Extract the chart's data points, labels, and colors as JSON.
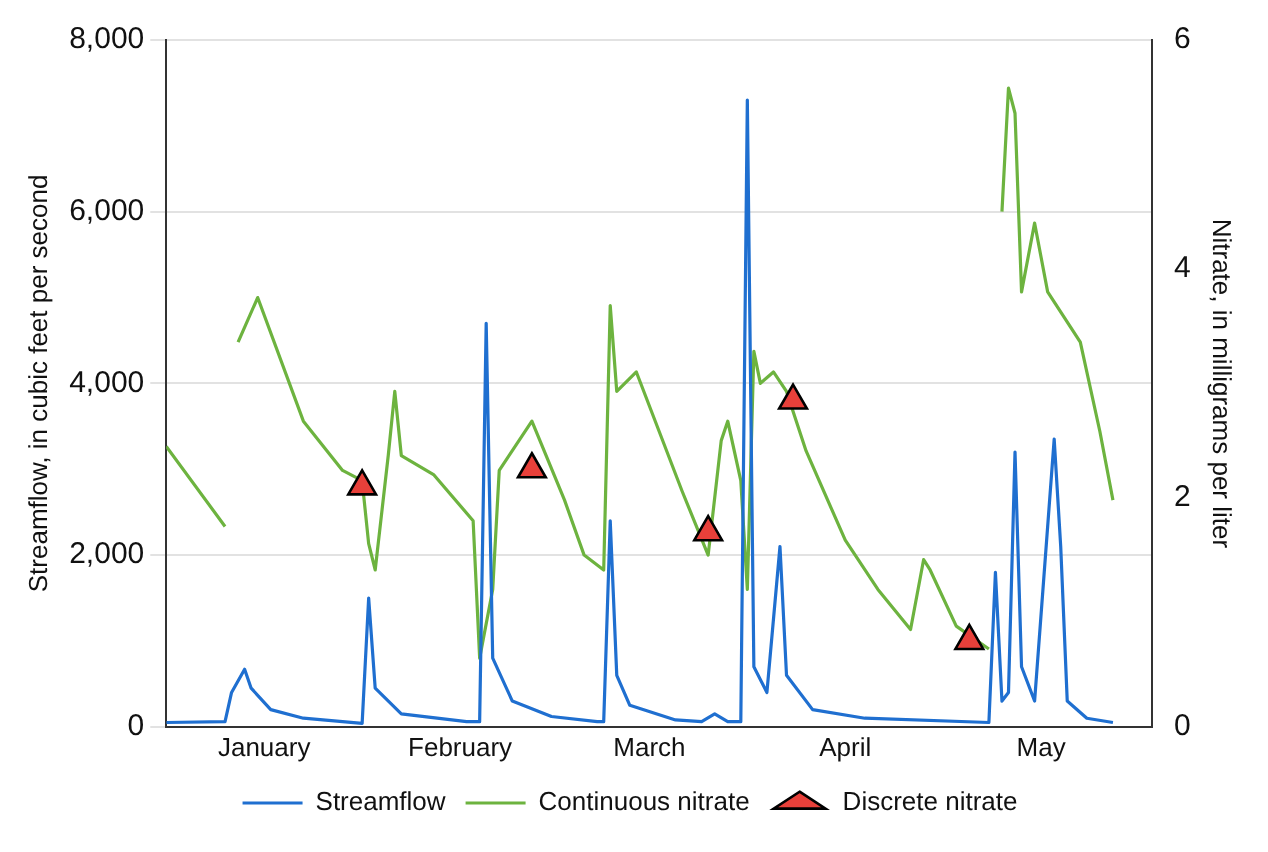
{
  "chart_data": {
    "type": "line",
    "xlabel": null,
    "ylabel": "Streamflow, in cubic feet per second",
    "y2label": "Nitrate, in milligrams per liter",
    "xlim": [
      "--01-01",
      "--06-01"
    ],
    "xticks": [
      {
        "value": "--01-16",
        "label": "January"
      },
      {
        "value": "--02-15",
        "label": "February"
      },
      {
        "value": "--03-16",
        "label": "March"
      },
      {
        "value": "--04-15",
        "label": "April"
      },
      {
        "value": "--05-15",
        "label": "May"
      }
    ],
    "ylim": [
      0,
      8000
    ],
    "yticks": [
      0,
      {
        "value": 2000,
        "label": "2,000"
      },
      {
        "value": 4000,
        "label": "4,000"
      },
      {
        "value": 6000,
        "label": "6,000"
      },
      {
        "value": 8000,
        "label": "8,000"
      }
    ],
    "y2lim": [
      0,
      6
    ],
    "y2ticks": [
      0,
      2,
      4,
      6
    ],
    "grid": "y",
    "legend": "bottom",
    "series": [
      {
        "name": "Streamflow",
        "type": "line",
        "color": "#1f6fd0",
        "marker": "none",
        "x": [
          "--01-01",
          "--01-10",
          "--01-11",
          "--01-13",
          "--01-14",
          "--01-17",
          "--01-22",
          "--01-31",
          "--02-01",
          "--02-02",
          "--02-06",
          "--02-16",
          "--02-18",
          "--02-19",
          "--02-20",
          "--02-23",
          "--03-01",
          "--03-08",
          "--03-09",
          "--03-10",
          "--03-11",
          "--03-13",
          "--03-20",
          "--03-24",
          "--03-26",
          "--03-28",
          "--03-30",
          "--03-31",
          "--04-01",
          "--04-03",
          "--04-05",
          "--04-06",
          "--04-10",
          "--04-18",
          "--05-07",
          "--05-08",
          "--05-09",
          "--05-10",
          "--05-11",
          "--05-12",
          "--05-14",
          "--05-17",
          "--05-18",
          "--05-19",
          "--05-22",
          "--05-26"
        ],
        "values": [
          50,
          60,
          400,
          670,
          450,
          200,
          100,
          40,
          1500,
          450,
          150,
          60,
          60,
          4700,
          800,
          300,
          120,
          60,
          60,
          2400,
          600,
          250,
          80,
          60,
          150,
          60,
          60,
          7300,
          700,
          400,
          2100,
          600,
          200,
          100,
          50,
          1800,
          300,
          400,
          3200,
          700,
          300,
          3350,
          2100,
          300,
          100,
          50
        ]
      },
      {
        "name": "Continuous nitrate",
        "type": "line",
        "axis": "y2",
        "color": "#6db33f",
        "marker": "none",
        "x": [
          "--01-01",
          "--01-10",
          "--01-11",
          "--01-12",
          "--01-15",
          "--01-22",
          "--01-28",
          "--01-31",
          "--02-01",
          "--02-02",
          "--02-04",
          "--02-05",
          "--02-06",
          "--02-11",
          "--02-17",
          "--02-18",
          "--02-20",
          "--02-21",
          "--02-26",
          "--03-03",
          "--03-06",
          "--03-09",
          "--03-10",
          "--03-11",
          "--03-14",
          "--03-21",
          "--03-25",
          "--03-27",
          "--03-28",
          "--03-30",
          "--03-31",
          "--04-01",
          "--04-02",
          "--04-04",
          "--04-06",
          "--04-09",
          "--04-15",
          "--04-20",
          "--04-25",
          "--04-27",
          "--04-28",
          "--05-02",
          "--05-07",
          "--05-08",
          "--05-09",
          "--05-10",
          "--05-11",
          "--05-12",
          "--05-14",
          "--05-16",
          "--05-21",
          "--05-24",
          "--05-26"
        ],
        "values": [
          2.45,
          1.75,
          null,
          3.36,
          3.75,
          2.67,
          2.24,
          2.15,
          1.6,
          1.37,
          2.37,
          2.93,
          2.37,
          2.2,
          1.8,
          0.6,
          1.2,
          2.24,
          2.67,
          1.98,
          1.5,
          1.37,
          3.68,
          2.93,
          3.1,
          2.06,
          1.5,
          2.5,
          2.67,
          2.15,
          1.2,
          3.28,
          3.0,
          3.1,
          2.93,
          2.41,
          1.63,
          1.2,
          0.85,
          1.46,
          1.37,
          0.88,
          0.68,
          null,
          4.5,
          5.58,
          5.36,
          3.8,
          4.4,
          3.8,
          3.36,
          2.58,
          1.98
        ]
      },
      {
        "name": "Discrete nitrate",
        "type": "scatter",
        "axis": "y2",
        "color": "#e8403a",
        "marker": "triangle",
        "x": [
          "--01-31",
          "--02-26",
          "--03-25",
          "--04-07",
          "--05-04"
        ],
        "values": [
          2.1,
          2.25,
          1.7,
          2.85,
          0.75
        ]
      }
    ]
  }
}
